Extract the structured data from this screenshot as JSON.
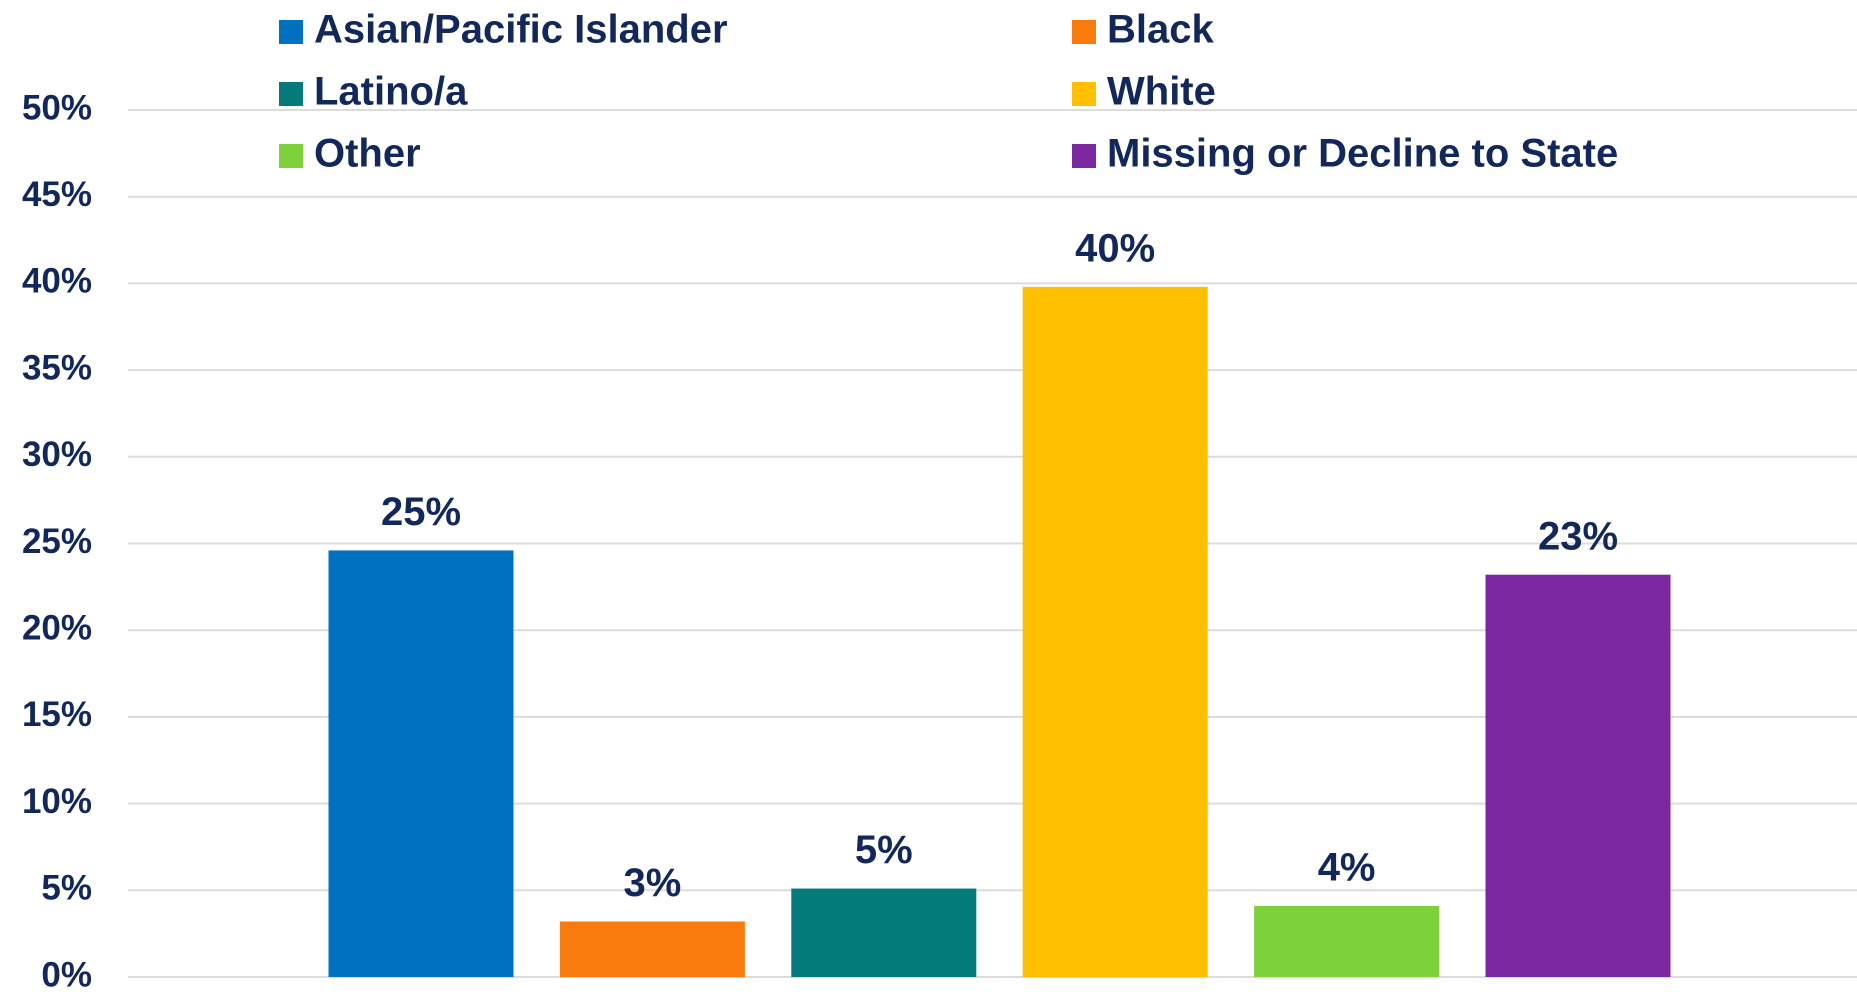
{
  "chart_data": {
    "type": "bar",
    "series": [
      {
        "name": "Asian/Pacific Islander",
        "color": "#0070c0",
        "values": [
          24.6
        ],
        "value_labels": [
          "25%"
        ]
      },
      {
        "name": "Black",
        "color": "#f97b0d",
        "values": [
          3.2
        ],
        "value_labels": [
          "3%"
        ]
      },
      {
        "name": "Latino/a",
        "color": "#037b7b",
        "values": [
          5.1
        ],
        "value_labels": [
          "5%"
        ]
      },
      {
        "name": "White",
        "color": "#fdbf00",
        "values": [
          39.8
        ],
        "value_labels": [
          "40%"
        ]
      },
      {
        "name": "Other",
        "color": "#7dd13a",
        "values": [
          4.1
        ],
        "value_labels": [
          "4%"
        ]
      },
      {
        "name": "Missing or Decline to State",
        "color": "#7a27a0",
        "values": [
          23.2
        ],
        "value_labels": [
          "23%"
        ]
      }
    ],
    "ylim": [
      0,
      50
    ],
    "yticks": [
      {
        "value": 0,
        "label": "0%"
      },
      {
        "value": 5,
        "label": "5%"
      },
      {
        "value": 10,
        "label": "10%"
      },
      {
        "value": 15,
        "label": "15%"
      },
      {
        "value": 20,
        "label": "20%"
      },
      {
        "value": 25,
        "label": "25%"
      },
      {
        "value": 30,
        "label": "30%"
      },
      {
        "value": 35,
        "label": "35%"
      },
      {
        "value": 40,
        "label": "40%"
      },
      {
        "value": 45,
        "label": "45%"
      },
      {
        "value": 50,
        "label": "50%"
      }
    ],
    "grid": true
  }
}
